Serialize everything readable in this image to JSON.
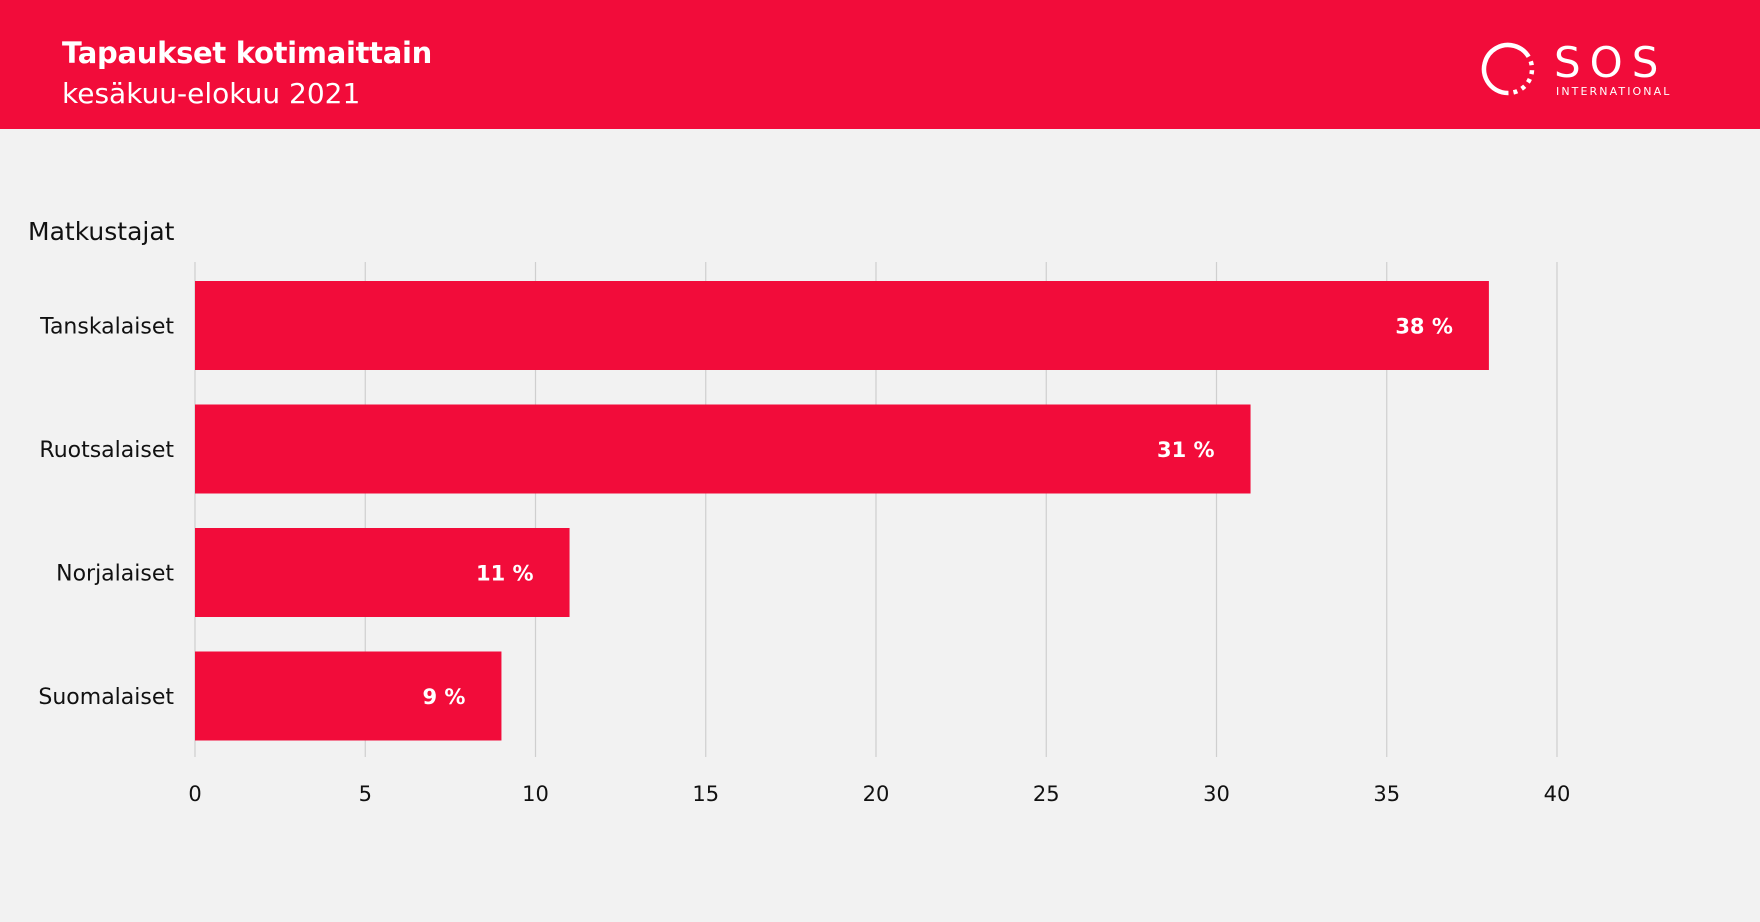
{
  "header": {
    "title": "Tapaukset kotimaittain",
    "subtitle": "kesäkuu-elokuu 2021",
    "background": "#f20c3a"
  },
  "logo": {
    "wordmark": "SOS",
    "subline": "INTERNATIONAL",
    "icon": "dotted-circle-icon"
  },
  "section_label": "Matkustajat",
  "colors": {
    "bar": "#f20c3a",
    "grid": "#cfcfcf",
    "background": "#f2f2f2",
    "bar_label": "#ffffff"
  },
  "chart_data": {
    "type": "bar",
    "orientation": "horizontal",
    "title": "",
    "xlabel": "",
    "ylabel": "Matkustajat",
    "categories": [
      "Tanskalaiset",
      "Ruotsalaiset",
      "Norjalaiset",
      "Suomalaiset"
    ],
    "values": [
      38,
      31,
      11,
      9
    ],
    "data_labels": [
      "38 %",
      "31 %",
      "11 %",
      "9 %"
    ],
    "xlim": [
      0,
      40
    ],
    "xticks": [
      0,
      5,
      10,
      15,
      20,
      25,
      30,
      35,
      40
    ],
    "grid": true,
    "legend": "none"
  }
}
